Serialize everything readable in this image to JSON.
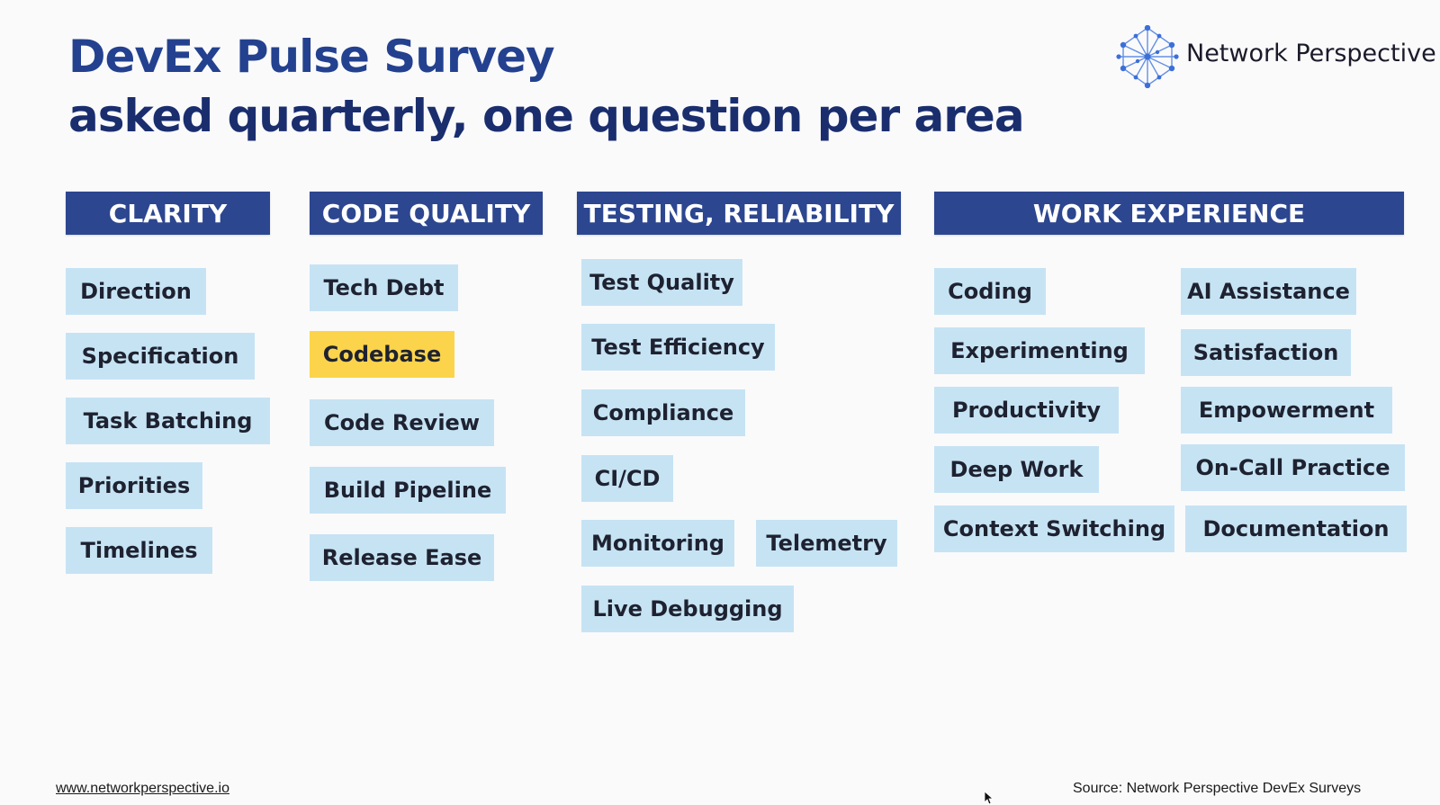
{
  "title": {
    "line1": "DevEx Pulse Survey",
    "line2": "asked quarterly, one question per area"
  },
  "brand": {
    "name": "Network Perspective",
    "logo_icon": "network-graph-icon",
    "accent": "#4a7fe0"
  },
  "colors": {
    "title": "#23418f",
    "header_bg": "#2c4690",
    "tag_bg": "#c6e3f4",
    "highlight_bg": "#fbd44c"
  },
  "areas": [
    {
      "header": "CLARITY",
      "items": [
        "Direction",
        "Specification",
        "Task Batching",
        "Priorities",
        "Timelines"
      ]
    },
    {
      "header": "CODE QUALITY",
      "items": [
        "Tech Debt",
        "Codebase",
        "Code Review",
        "Build Pipeline",
        "Release Ease"
      ],
      "highlighted": "Codebase"
    },
    {
      "header": "TESTING, RELIABILITY",
      "items": [
        "Test Quality",
        "Test Efficiency",
        "Compliance",
        "CI/CD",
        "Monitoring",
        "Telemetry",
        "Live Debugging"
      ]
    },
    {
      "header": "WORK EXPERIENCE",
      "items": [
        "Coding",
        "AI Assistance",
        "Experimenting",
        "Satisfaction",
        "Productivity",
        "Empowerment",
        "Deep Work",
        "On-Call Practice",
        "Context Switching",
        "Documentation"
      ]
    }
  ],
  "footer": {
    "website": "www.networkperspective.io",
    "source": "Source: Network Perspective DevEx Surveys"
  }
}
